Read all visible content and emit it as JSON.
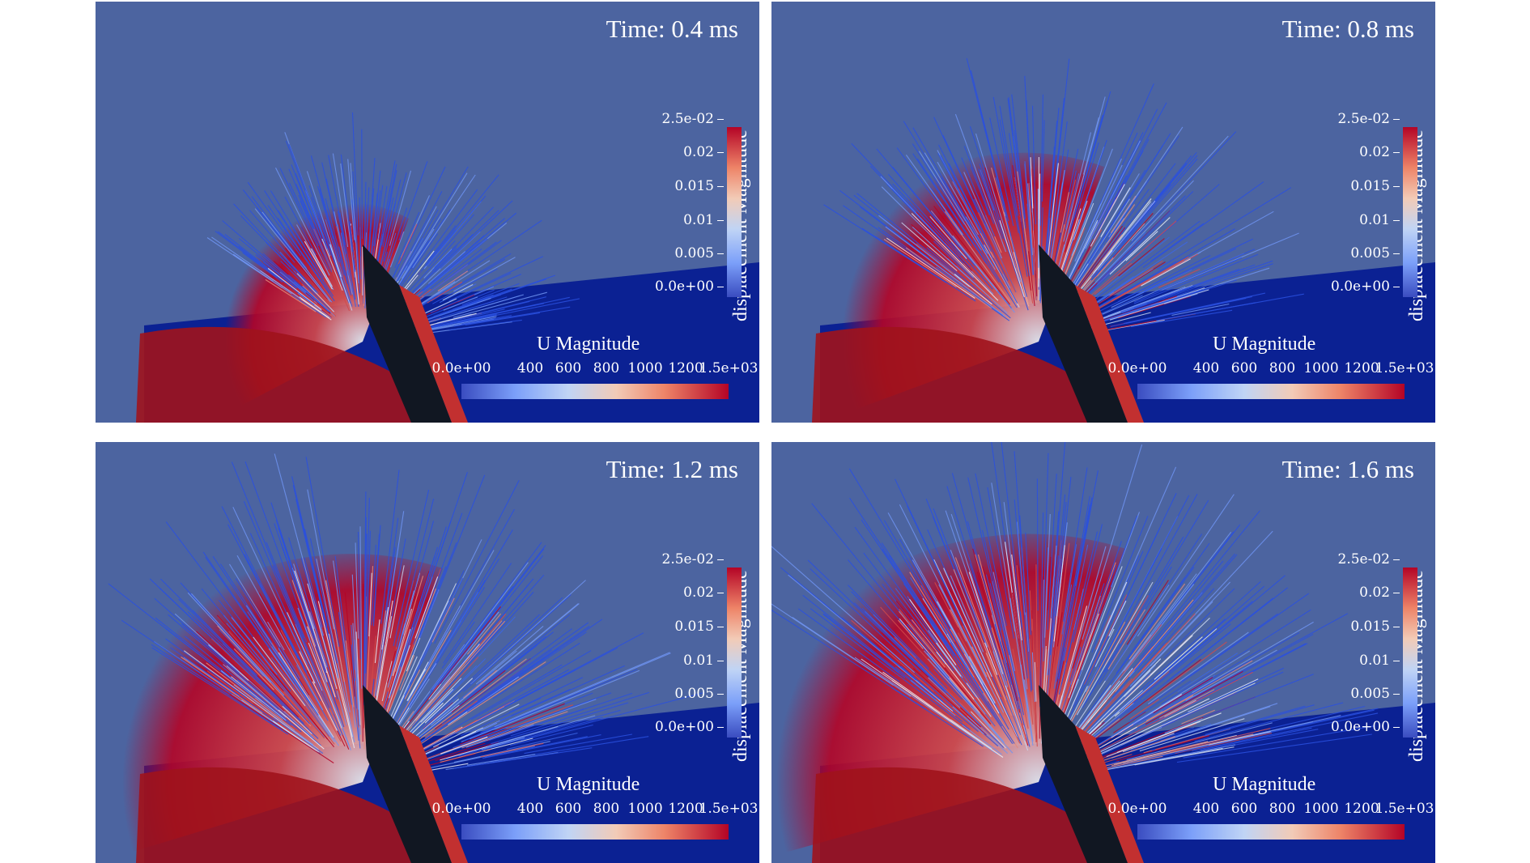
{
  "panels": [
    {
      "time_label": "Time: 0.4 ms"
    },
    {
      "time_label": "Time: 0.8 ms"
    },
    {
      "time_label": "Time: 1.2 ms"
    },
    {
      "time_label": "Time: 1.6 ms"
    }
  ],
  "displacement_legend": {
    "title": "displacement Magnitude",
    "ticks": [
      "2.5e-02",
      "0.02",
      "0.015",
      "0.01",
      "0.005",
      "0.0e+00"
    ],
    "range": [
      0,
      0.025
    ]
  },
  "velocity_legend": {
    "title": "U Magnitude",
    "ticks": [
      "0.0e+00",
      "400",
      "600",
      "800",
      "1000",
      "1200",
      "1.5e+03"
    ],
    "range": [
      0,
      1500
    ]
  },
  "colors": {
    "background": "#4c64a0",
    "ground": "#0b2193",
    "colormap_low": "#3a4cc0",
    "colormap_mid": "#dddddd",
    "colormap_high": "#b40426"
  }
}
